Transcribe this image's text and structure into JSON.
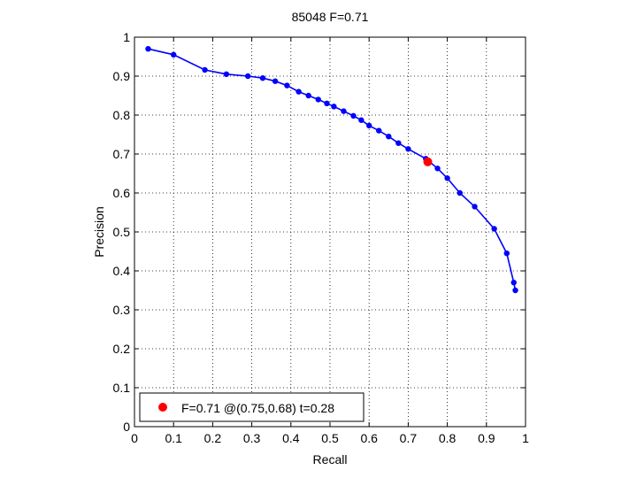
{
  "chart_data": {
    "type": "line",
    "title": "85048 F=0.71",
    "xlabel": "Recall",
    "ylabel": "Precision",
    "xlim": [
      0,
      1
    ],
    "ylim": [
      0,
      1
    ],
    "grid": true,
    "xticks": [
      0,
      0.1,
      0.2,
      0.3,
      0.4,
      0.5,
      0.6,
      0.7,
      0.8,
      0.9,
      1
    ],
    "yticks": [
      0,
      0.1,
      0.2,
      0.3,
      0.4,
      0.5,
      0.6,
      0.7,
      0.8,
      0.9,
      1
    ],
    "tick_labels_x": [
      "0",
      "0.1",
      "0.2",
      "0.3",
      "0.4",
      "0.5",
      "0.6",
      "0.7",
      "0.8",
      "0.9",
      "1"
    ],
    "tick_labels_y": [
      "0",
      "0.1",
      "0.2",
      "0.3",
      "0.4",
      "0.5",
      "0.6",
      "0.7",
      "0.8",
      "0.9",
      "1"
    ],
    "series": [
      {
        "color": "#0000ff",
        "marker": "dot",
        "x": [
          0.035,
          0.1,
          0.18,
          0.235,
          0.29,
          0.328,
          0.36,
          0.39,
          0.42,
          0.445,
          0.47,
          0.492,
          0.51,
          0.535,
          0.56,
          0.58,
          0.6,
          0.625,
          0.65,
          0.675,
          0.7,
          0.745,
          0.775,
          0.8,
          0.832,
          0.87,
          0.92,
          0.952,
          0.97,
          0.974
        ],
        "y": [
          0.97,
          0.955,
          0.916,
          0.905,
          0.9,
          0.895,
          0.887,
          0.876,
          0.86,
          0.85,
          0.84,
          0.83,
          0.822,
          0.81,
          0.798,
          0.787,
          0.773,
          0.76,
          0.745,
          0.728,
          0.713,
          0.688,
          0.663,
          0.638,
          0.6,
          0.565,
          0.508,
          0.445,
          0.37,
          0.35
        ]
      }
    ],
    "highlight": {
      "x": 0.75,
      "y": 0.68,
      "color": "#ff0000"
    },
    "legend": {
      "position": "bottom-left",
      "label": "F=0.71 @(0.75,0.68) t=0.28"
    }
  }
}
